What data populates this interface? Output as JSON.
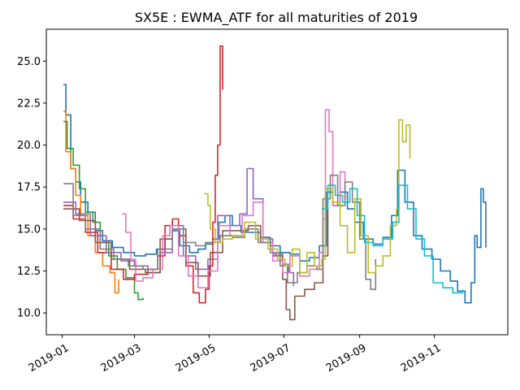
{
  "chart_data": {
    "type": "line",
    "title": "SX5E : EWMA_ATF for all maturities of 2019",
    "xlabel": "",
    "ylabel": "",
    "x_tick_labels": [
      "2019-01",
      "2019-03",
      "2019-05",
      "2019-07",
      "2019-09",
      "2019-11"
    ],
    "x_tick_dates": [
      "2019-01-01",
      "2019-03-01",
      "2019-05-01",
      "2019-07-01",
      "2019-09-01",
      "2019-11-01"
    ],
    "xlim": [
      "2018-12-19",
      "2019-12-31"
    ],
    "y_tick_labels": [
      "10.0",
      "12.5",
      "15.0",
      "17.5",
      "20.0",
      "22.5",
      "25.0"
    ],
    "y_ticks": [
      10.0,
      12.5,
      15.0,
      17.5,
      20.0,
      22.5,
      25.0
    ],
    "ylim": [
      8.7,
      26.9
    ],
    "grid": false,
    "series": [
      {
        "color": "#1f77b4",
        "points": [
          [
            "2019-01-02",
            23.6
          ],
          [
            "2019-01-04",
            21.8
          ],
          [
            "2019-01-08",
            18.6
          ],
          [
            "2019-01-12",
            17.8
          ],
          [
            "2019-01-16",
            16.6
          ],
          [
            "2019-01-22",
            16.0
          ],
          [
            "2019-01-28",
            14.9
          ],
          [
            "2019-02-03",
            14.3
          ],
          [
            "2019-02-11",
            13.9
          ],
          [
            "2019-02-20",
            13.6
          ],
          [
            "2019-03-01",
            13.4
          ],
          [
            "2019-03-10",
            13.5
          ],
          [
            "2019-03-19",
            13.8
          ],
          [
            "2019-03-26",
            14.4
          ],
          [
            "2019-04-01",
            14.9
          ],
          [
            "2019-04-07",
            14.0
          ],
          [
            "2019-04-15",
            13.6
          ],
          [
            "2019-04-22",
            13.8
          ],
          [
            "2019-04-28",
            14.1
          ],
          [
            "2019-05-04",
            14.4
          ],
          [
            "2019-05-09",
            15.4
          ],
          [
            "2019-05-14",
            15.8
          ],
          [
            "2019-05-20",
            15.2
          ],
          [
            "2019-05-27",
            14.8
          ],
          [
            "2019-06-04",
            14.8
          ],
          [
            "2019-06-12",
            14.5
          ],
          [
            "2019-06-20",
            14.0
          ],
          [
            "2019-06-28",
            13.6
          ],
          [
            "2019-07-06",
            13.5
          ],
          [
            "2019-07-14",
            13.1
          ],
          [
            "2019-07-22",
            13.3
          ],
          [
            "2019-07-30",
            14.0
          ],
          [
            "2019-08-05",
            17.2
          ],
          [
            "2019-08-10",
            16.4
          ],
          [
            "2019-08-16",
            17.2
          ],
          [
            "2019-08-22",
            16.2
          ],
          [
            "2019-08-28",
            15.4
          ],
          [
            "2019-09-04",
            14.4
          ],
          [
            "2019-09-12",
            14.1
          ],
          [
            "2019-09-20",
            14.5
          ],
          [
            "2019-09-27",
            15.8
          ],
          [
            "2019-10-02",
            18.5
          ],
          [
            "2019-10-08",
            16.6
          ],
          [
            "2019-10-15",
            14.6
          ],
          [
            "2019-10-22",
            13.8
          ],
          [
            "2019-10-30",
            13.2
          ],
          [
            "2019-11-06",
            12.5
          ],
          [
            "2019-11-14",
            11.9
          ],
          [
            "2019-11-20",
            11.3
          ],
          [
            "2019-11-26",
            10.6
          ],
          [
            "2019-12-01",
            11.8
          ],
          [
            "2019-12-04",
            14.6
          ],
          [
            "2019-12-06",
            13.9
          ],
          [
            "2019-12-09",
            17.4
          ],
          [
            "2019-12-11",
            16.6
          ],
          [
            "2019-12-13",
            13.9
          ]
        ]
      },
      {
        "color": "#ff7f0e",
        "points": [
          [
            "2019-01-02",
            22.0
          ],
          [
            "2019-01-04",
            19.6
          ],
          [
            "2019-01-08",
            18.6
          ],
          [
            "2019-01-12",
            17.0
          ],
          [
            "2019-01-16",
            15.8
          ],
          [
            "2019-01-22",
            14.6
          ],
          [
            "2019-01-28",
            13.6
          ],
          [
            "2019-02-03",
            12.8
          ],
          [
            "2019-02-09",
            12.4
          ],
          [
            "2019-02-13",
            11.2
          ],
          [
            "2019-02-16",
            12.0
          ]
        ]
      },
      {
        "color": "#2ca02c",
        "points": [
          [
            "2019-01-02",
            21.4
          ],
          [
            "2019-01-05",
            19.8
          ],
          [
            "2019-01-10",
            18.8
          ],
          [
            "2019-01-15",
            17.4
          ],
          [
            "2019-01-20",
            16.0
          ],
          [
            "2019-01-26",
            15.4
          ],
          [
            "2019-02-01",
            14.2
          ],
          [
            "2019-02-08",
            13.4
          ],
          [
            "2019-02-15",
            12.6
          ],
          [
            "2019-02-22",
            12.1
          ],
          [
            "2019-03-01",
            11.2
          ],
          [
            "2019-03-04",
            10.8
          ],
          [
            "2019-03-08",
            10.9
          ]
        ]
      },
      {
        "color": "#d62728",
        "points": [
          [
            "2019-01-02",
            16.4
          ],
          [
            "2019-01-10",
            15.6
          ],
          [
            "2019-01-20",
            14.8
          ],
          [
            "2019-01-30",
            13.6
          ],
          [
            "2019-02-10",
            12.6
          ],
          [
            "2019-02-20",
            12.0
          ],
          [
            "2019-03-01",
            12.3
          ],
          [
            "2019-03-12",
            12.6
          ],
          [
            "2019-03-20",
            13.4
          ],
          [
            "2019-03-26",
            15.2
          ],
          [
            "2019-04-01",
            15.6
          ],
          [
            "2019-04-06",
            14.6
          ],
          [
            "2019-04-12",
            12.8
          ],
          [
            "2019-04-18",
            11.2
          ],
          [
            "2019-04-23",
            10.6
          ],
          [
            "2019-04-28",
            11.4
          ],
          [
            "2019-05-01",
            12.8
          ],
          [
            "2019-05-04",
            15.4
          ],
          [
            "2019-05-06",
            18.2
          ],
          [
            "2019-05-08",
            20.0
          ],
          [
            "2019-05-10",
            25.9
          ],
          [
            "2019-05-12",
            23.3
          ]
        ]
      },
      {
        "color": "#9467bd",
        "points": [
          [
            "2019-01-02",
            16.6
          ],
          [
            "2019-01-12",
            15.9
          ],
          [
            "2019-01-24",
            14.6
          ],
          [
            "2019-02-06",
            13.6
          ],
          [
            "2019-02-18",
            13.1
          ],
          [
            "2019-03-01",
            12.8
          ],
          [
            "2019-03-12",
            12.4
          ],
          [
            "2019-03-22",
            13.6
          ],
          [
            "2019-04-01",
            15.2
          ],
          [
            "2019-04-10",
            13.4
          ],
          [
            "2019-04-20",
            12.6
          ],
          [
            "2019-04-30",
            13.2
          ],
          [
            "2019-05-08",
            15.8
          ],
          [
            "2019-05-18",
            15.2
          ],
          [
            "2019-05-26",
            15.9
          ],
          [
            "2019-06-01",
            18.6
          ],
          [
            "2019-06-06",
            16.8
          ],
          [
            "2019-06-14",
            14.4
          ],
          [
            "2019-06-22",
            13.5
          ],
          [
            "2019-06-30",
            12.9
          ],
          [
            "2019-07-05",
            12.4
          ],
          [
            "2019-07-09",
            11.6
          ]
        ]
      },
      {
        "color": "#8c564b",
        "points": [
          [
            "2019-01-02",
            16.2
          ],
          [
            "2019-01-15",
            15.5
          ],
          [
            "2019-01-28",
            14.2
          ],
          [
            "2019-02-10",
            13.2
          ],
          [
            "2019-02-25",
            12.6
          ],
          [
            "2019-03-10",
            12.4
          ],
          [
            "2019-03-22",
            14.4
          ],
          [
            "2019-04-01",
            15.0
          ],
          [
            "2019-04-12",
            13.0
          ],
          [
            "2019-04-22",
            12.2
          ],
          [
            "2019-05-02",
            13.6
          ],
          [
            "2019-05-12",
            14.9
          ],
          [
            "2019-05-22",
            14.9
          ],
          [
            "2019-06-02",
            15.2
          ],
          [
            "2019-06-12",
            14.2
          ],
          [
            "2019-06-22",
            13.4
          ],
          [
            "2019-06-30",
            12.0
          ],
          [
            "2019-07-03",
            10.2
          ],
          [
            "2019-07-06",
            9.6
          ],
          [
            "2019-07-10",
            11.0
          ],
          [
            "2019-07-18",
            11.4
          ],
          [
            "2019-07-26",
            11.8
          ],
          [
            "2019-08-02",
            13.4
          ],
          [
            "2019-08-06",
            16.2
          ]
        ]
      },
      {
        "color": "#e377c2",
        "points": [
          [
            "2019-02-19",
            15.9
          ],
          [
            "2019-02-22",
            14.8
          ],
          [
            "2019-02-26",
            13.2
          ],
          [
            "2019-03-02",
            11.9
          ],
          [
            "2019-03-08",
            12.1
          ],
          [
            "2019-03-16",
            12.6
          ],
          [
            "2019-03-24",
            14.6
          ],
          [
            "2019-03-30",
            15.2
          ],
          [
            "2019-04-06",
            13.4
          ],
          [
            "2019-04-14",
            12.2
          ],
          [
            "2019-04-22",
            11.5
          ],
          [
            "2019-04-30",
            12.5
          ],
          [
            "2019-05-08",
            15.2
          ],
          [
            "2019-05-18",
            14.6
          ],
          [
            "2019-05-28",
            15.8
          ],
          [
            "2019-06-06",
            16.6
          ],
          [
            "2019-06-14",
            14.2
          ],
          [
            "2019-06-22",
            13.1
          ],
          [
            "2019-06-30",
            12.4
          ],
          [
            "2019-07-06",
            13.4
          ],
          [
            "2019-07-14",
            12.2
          ],
          [
            "2019-07-22",
            12.6
          ],
          [
            "2019-07-30",
            13.6
          ],
          [
            "2019-08-02",
            15.6
          ],
          [
            "2019-08-04",
            22.1
          ],
          [
            "2019-08-07",
            20.8
          ],
          [
            "2019-08-10",
            16.4
          ],
          [
            "2019-08-16",
            18.4
          ],
          [
            "2019-08-20",
            16.8
          ]
        ]
      },
      {
        "color": "#7f7f7f",
        "points": [
          [
            "2019-01-02",
            17.7
          ],
          [
            "2019-01-10",
            15.8
          ],
          [
            "2019-01-20",
            15.0
          ],
          [
            "2019-02-01",
            13.8
          ],
          [
            "2019-02-12",
            13.2
          ],
          [
            "2019-02-24",
            12.8
          ],
          [
            "2019-03-08",
            12.6
          ],
          [
            "2019-03-20",
            13.8
          ],
          [
            "2019-04-01",
            15.0
          ],
          [
            "2019-04-10",
            14.2
          ],
          [
            "2019-04-20",
            14.0
          ],
          [
            "2019-04-28",
            14.2
          ],
          [
            "2019-05-10",
            14.6
          ],
          [
            "2019-05-20",
            14.5
          ],
          [
            "2019-05-30",
            15.0
          ],
          [
            "2019-06-10",
            14.2
          ],
          [
            "2019-06-20",
            13.6
          ],
          [
            "2019-06-28",
            12.8
          ],
          [
            "2019-07-04",
            11.8
          ],
          [
            "2019-07-12",
            12.4
          ],
          [
            "2019-07-20",
            12.8
          ],
          [
            "2019-07-28",
            12.6
          ],
          [
            "2019-08-02",
            16.8
          ],
          [
            "2019-08-08",
            18.2
          ],
          [
            "2019-08-14",
            16.4
          ],
          [
            "2019-08-20",
            17.8
          ],
          [
            "2019-08-26",
            16.6
          ],
          [
            "2019-09-01",
            14.4
          ],
          [
            "2019-09-06",
            12.0
          ],
          [
            "2019-09-10",
            11.4
          ],
          [
            "2019-09-14",
            13.2
          ]
        ]
      },
      {
        "color": "#bcbd22",
        "points": [
          [
            "2019-04-27",
            17.1
          ],
          [
            "2019-04-30",
            16.4
          ],
          [
            "2019-05-02",
            15.0
          ],
          [
            "2019-05-06",
            14.2
          ],
          [
            "2019-05-12",
            14.4
          ],
          [
            "2019-05-20",
            14.6
          ],
          [
            "2019-05-30",
            15.4
          ],
          [
            "2019-06-08",
            14.4
          ],
          [
            "2019-06-18",
            13.8
          ],
          [
            "2019-06-26",
            13.2
          ],
          [
            "2019-07-02",
            12.8
          ],
          [
            "2019-07-08",
            13.8
          ],
          [
            "2019-07-14",
            12.4
          ],
          [
            "2019-07-20",
            13.6
          ],
          [
            "2019-07-26",
            12.8
          ],
          [
            "2019-08-01",
            13.2
          ],
          [
            "2019-08-04",
            17.4
          ],
          [
            "2019-08-10",
            16.6
          ],
          [
            "2019-08-16",
            15.2
          ],
          [
            "2019-08-22",
            13.6
          ],
          [
            "2019-08-28",
            16.8
          ],
          [
            "2019-09-02",
            14.6
          ],
          [
            "2019-09-08",
            12.4
          ],
          [
            "2019-09-14",
            12.8
          ],
          [
            "2019-09-20",
            13.4
          ],
          [
            "2019-09-26",
            15.2
          ],
          [
            "2019-10-01",
            16.2
          ],
          [
            "2019-10-03",
            21.5
          ],
          [
            "2019-10-06",
            20.2
          ],
          [
            "2019-10-09",
            21.2
          ],
          [
            "2019-10-12",
            19.2
          ]
        ]
      },
      {
        "color": "#17becf",
        "points": [
          [
            "2019-08-01",
            16.2
          ],
          [
            "2019-08-06",
            17.6
          ],
          [
            "2019-08-12",
            17.0
          ],
          [
            "2019-08-18",
            16.6
          ],
          [
            "2019-08-24",
            17.4
          ],
          [
            "2019-08-30",
            15.8
          ],
          [
            "2019-09-05",
            14.2
          ],
          [
            "2019-09-12",
            14.0
          ],
          [
            "2019-09-20",
            14.4
          ],
          [
            "2019-09-28",
            15.4
          ],
          [
            "2019-10-03",
            17.6
          ],
          [
            "2019-10-10",
            16.2
          ],
          [
            "2019-10-17",
            14.4
          ],
          [
            "2019-10-24",
            13.4
          ],
          [
            "2019-10-31",
            11.8
          ],
          [
            "2019-11-08",
            11.5
          ],
          [
            "2019-11-16",
            11.2
          ],
          [
            "2019-11-24",
            11.4
          ]
        ]
      }
    ]
  }
}
